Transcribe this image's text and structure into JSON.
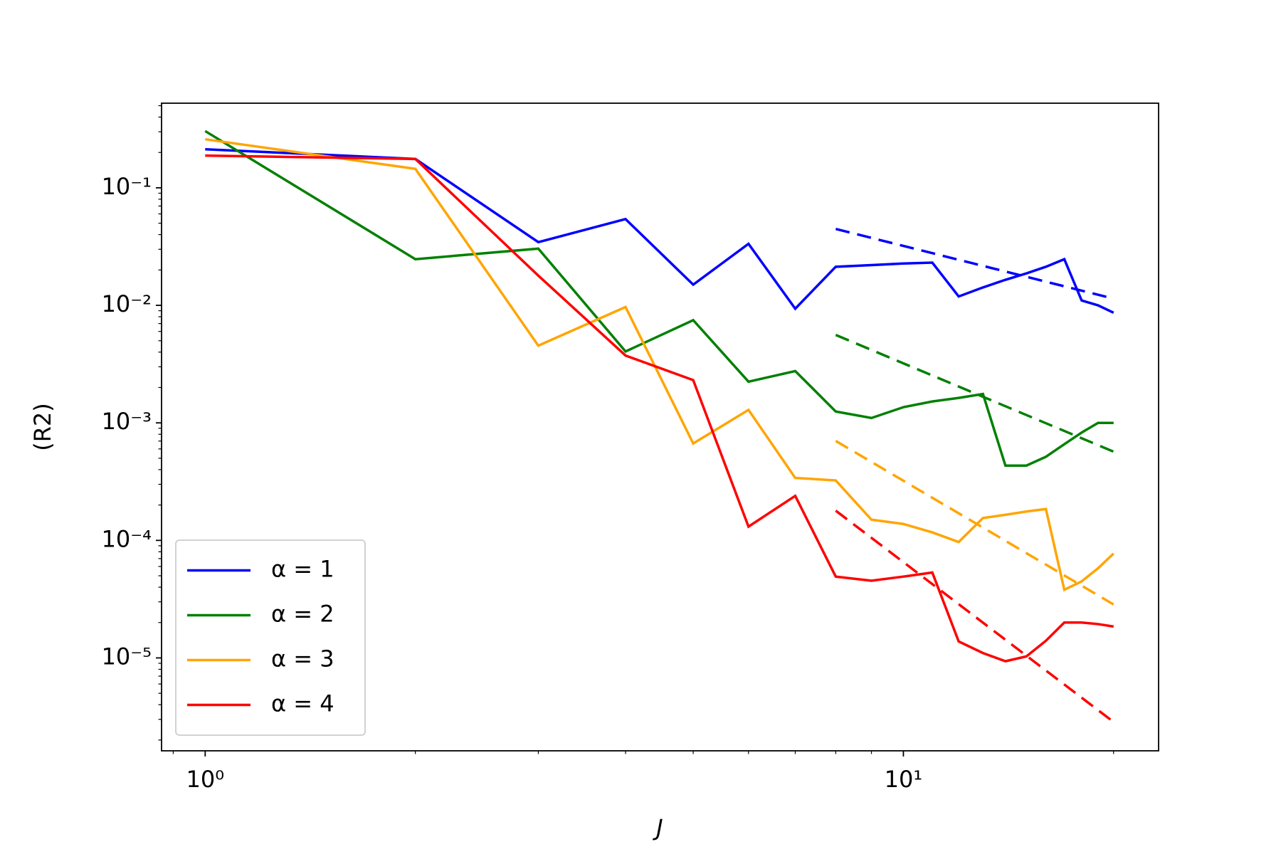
{
  "chart_data": {
    "type": "line",
    "xlabel": "J",
    "ylabel": "(R2)",
    "xscale": "log",
    "yscale": "log",
    "xlim": [
      0.866,
      23.2
    ],
    "ylim": [
      1.62e-06,
      0.525
    ],
    "xticks": [
      {
        "value": 1,
        "label": "10⁰"
      },
      {
        "value": 10,
        "label": "10¹"
      }
    ],
    "yticks": [
      {
        "value": 0.1,
        "label": "10⁻¹"
      },
      {
        "value": 0.01,
        "label": "10⁻²"
      },
      {
        "value": 0.001,
        "label": "10⁻³"
      },
      {
        "value": 0.0001,
        "label": "10⁻⁴"
      },
      {
        "value": 1e-05,
        "label": "10⁻⁵"
      }
    ],
    "xminorticks": [
      0.9,
      2,
      3,
      4,
      5,
      6,
      7,
      8,
      9,
      20
    ],
    "yminorticks": [
      2e-06,
      3e-06,
      4e-06,
      5e-06,
      6e-06,
      7e-06,
      8e-06,
      9e-06,
      2e-05,
      3e-05,
      4e-05,
      5e-05,
      6e-05,
      7e-05,
      8e-05,
      9e-05,
      0.0002,
      0.0003,
      0.0004,
      0.0005,
      0.0006,
      0.0007,
      0.0008,
      0.0009,
      0.002,
      0.003,
      0.004,
      0.005,
      0.006,
      0.007,
      0.008,
      0.009,
      0.02,
      0.03,
      0.04,
      0.05,
      0.06,
      0.07,
      0.08,
      0.09,
      0.2,
      0.3,
      0.4,
      0.5
    ],
    "legend": "lower left",
    "x": [
      1,
      2,
      3,
      4,
      5,
      6,
      7,
      8,
      9,
      10,
      11,
      12,
      13,
      14,
      15,
      16,
      17,
      18,
      19,
      20
    ],
    "series": [
      {
        "name": "α = 1",
        "color": "#0000ff",
        "values": [
          0.213,
          0.176,
          0.0345,
          0.0542,
          0.015,
          0.0334,
          0.00937,
          0.0213,
          0.022,
          0.0227,
          0.0231,
          0.0119,
          0.0142,
          0.0165,
          0.0187,
          0.0213,
          0.0247,
          0.011,
          0.01,
          0.00865
        ]
      },
      {
        "name": "α = 2",
        "color": "#008000",
        "values": [
          0.304,
          0.0247,
          0.0304,
          0.00405,
          0.00748,
          0.00224,
          0.00276,
          0.00125,
          0.0011,
          0.00136,
          0.00152,
          0.00163,
          0.00176,
          0.000433,
          0.000433,
          0.000515,
          0.000658,
          0.000827,
          0.001,
          0.001
        ]
      },
      {
        "name": "α = 3",
        "color": "#ffa500",
        "values": [
          0.259,
          0.145,
          0.00454,
          0.00968,
          0.000668,
          0.00129,
          0.00034,
          0.000324,
          0.00015,
          0.000138,
          0.000117,
          9.68e-05,
          0.000155,
          0.000165,
          0.000176,
          0.000185,
          3.8e-05,
          4.48e-05,
          5.79e-05,
          7.73e-05
        ]
      },
      {
        "name": "α = 4",
        "color": "#ff0000",
        "values": [
          0.188,
          0.176,
          0.0179,
          0.00374,
          0.00231,
          0.000131,
          0.000239,
          4.92e-05,
          4.54e-05,
          4.92e-05,
          5.33e-05,
          1.38e-05,
          1.1e-05,
          9.37e-06,
          1.03e-05,
          1.4e-05,
          2e-05,
          2e-05,
          1.94e-05,
          1.85e-05
        ]
      }
    ],
    "fit_lines": [
      {
        "color": "#0000ff",
        "x": [
          8,
          20
        ],
        "values": [
          0.0447,
          0.0114
        ]
      },
      {
        "color": "#008000",
        "x": [
          8,
          20
        ],
        "values": [
          0.0056,
          0.000569
        ]
      },
      {
        "color": "#ffa500",
        "x": [
          8,
          20
        ],
        "values": [
          0.000702,
          2.85e-05
        ]
      },
      {
        "color": "#ff0000",
        "x": [
          8,
          20
        ],
        "values": [
          0.000179,
          2.85e-06
        ]
      }
    ]
  }
}
